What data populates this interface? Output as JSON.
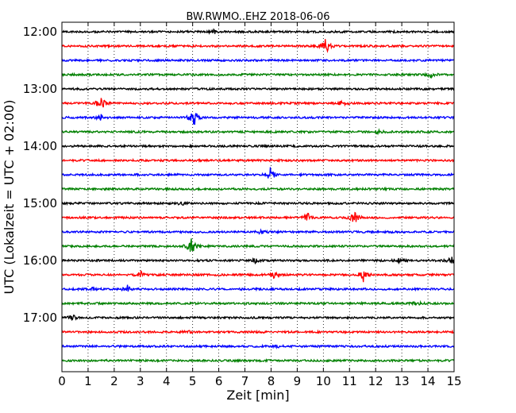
{
  "chart_data": {
    "type": "line",
    "title": "BW.RWMO..EHZ 2018-06-06",
    "xlabel": "Zeit  [min]",
    "ylabel": "UTC (Lokalzeit = UTC + 02:00)",
    "xlim": [
      0,
      15
    ],
    "x_ticks": [
      "0",
      "1",
      "2",
      "3",
      "4",
      "5",
      "6",
      "7",
      "8",
      "9",
      "10",
      "11",
      "12",
      "13",
      "14",
      "15"
    ],
    "y_tick_labels": [
      "12:00",
      "13:00",
      "14:00",
      "15:00",
      "16:00",
      "17:00"
    ],
    "grid": "vertical dotted",
    "trace_colors": [
      "#000000",
      "#ff0000",
      "#0000ff",
      "#008000"
    ],
    "traces": [
      {
        "start": "12:00",
        "color": "#000000",
        "events": [
          {
            "t": 5.8,
            "amp": 0.25
          }
        ]
      },
      {
        "start": "12:15",
        "color": "#ff0000",
        "events": [
          {
            "t": 10.1,
            "amp": 1.0
          }
        ]
      },
      {
        "start": "12:30",
        "color": "#0000ff",
        "events": []
      },
      {
        "start": "12:45",
        "color": "#008000",
        "events": [
          {
            "t": 14.1,
            "amp": 0.3
          }
        ]
      },
      {
        "start": "13:00",
        "color": "#000000",
        "events": []
      },
      {
        "start": "13:15",
        "color": "#ff0000",
        "events": [
          {
            "t": 1.5,
            "amp": 0.9
          },
          {
            "t": 10.7,
            "amp": 0.25
          }
        ]
      },
      {
        "start": "13:30",
        "color": "#0000ff",
        "events": [
          {
            "t": 1.5,
            "amp": 0.3
          },
          {
            "t": 5.05,
            "amp": 1.0
          }
        ]
      },
      {
        "start": "13:45",
        "color": "#008000",
        "events": [
          {
            "t": 12.1,
            "amp": 0.2
          }
        ]
      },
      {
        "start": "14:00",
        "color": "#000000",
        "events": []
      },
      {
        "start": "14:15",
        "color": "#ff0000",
        "events": []
      },
      {
        "start": "14:30",
        "color": "#0000ff",
        "events": [
          {
            "t": 8.0,
            "amp": 1.0
          }
        ]
      },
      {
        "start": "14:45",
        "color": "#008000",
        "events": []
      },
      {
        "start": "15:00",
        "color": "#000000",
        "events": [
          {
            "t": 4.6,
            "amp": 0.2
          }
        ]
      },
      {
        "start": "15:15",
        "color": "#ff0000",
        "events": [
          {
            "t": 9.4,
            "amp": 0.5
          },
          {
            "t": 11.2,
            "amp": 0.75
          }
        ]
      },
      {
        "start": "15:30",
        "color": "#0000ff",
        "events": [
          {
            "t": 7.6,
            "amp": 0.2
          }
        ]
      },
      {
        "start": "15:45",
        "color": "#008000",
        "events": [
          {
            "t": 4.95,
            "amp": 1.0
          }
        ]
      },
      {
        "start": "16:00",
        "color": "#000000",
        "events": [
          {
            "t": 7.4,
            "amp": 0.25
          },
          {
            "t": 12.9,
            "amp": 0.25
          },
          {
            "t": 14.9,
            "amp": 0.4
          }
        ]
      },
      {
        "start": "16:15",
        "color": "#ff0000",
        "events": [
          {
            "t": 3.0,
            "amp": 0.4
          },
          {
            "t": 8.1,
            "amp": 0.3
          },
          {
            "t": 11.55,
            "amp": 0.9
          }
        ]
      },
      {
        "start": "16:30",
        "color": "#0000ff",
        "events": [
          {
            "t": 1.2,
            "amp": 0.3
          },
          {
            "t": 2.5,
            "amp": 0.45
          }
        ]
      },
      {
        "start": "16:45",
        "color": "#008000",
        "events": [
          {
            "t": 13.6,
            "amp": 0.2
          }
        ]
      },
      {
        "start": "17:00",
        "color": "#000000",
        "events": [
          {
            "t": 0.4,
            "amp": 0.35
          }
        ]
      },
      {
        "start": "17:15",
        "color": "#ff0000",
        "events": [
          {
            "t": 4.8,
            "amp": 0.15
          }
        ]
      },
      {
        "start": "17:30",
        "color": "#0000ff",
        "events": [
          {
            "t": 8.2,
            "amp": 0.15
          }
        ]
      },
      {
        "start": "17:45",
        "color": "#008000",
        "events": []
      }
    ]
  }
}
